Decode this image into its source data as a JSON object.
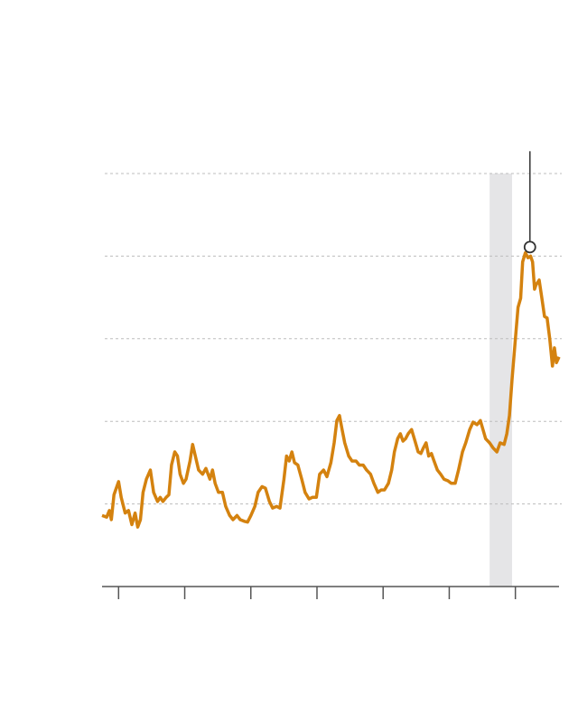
{
  "chart_data": {
    "type": "line",
    "color": "#d4820f",
    "xlim": [
      -0.25,
      6.66
    ],
    "ylim": [
      0,
      5
    ],
    "xticks": [
      0,
      1,
      2,
      3,
      4,
      5,
      6
    ],
    "yticks": [
      1,
      2,
      3,
      4,
      5
    ],
    "grid": true,
    "shade": [
      5.61,
      5.95
    ],
    "marker": {
      "x": 6.22,
      "y": 4.11,
      "leader_top": 5.27
    },
    "x": [
      -0.25,
      -0.18,
      -0.14,
      -0.11,
      -0.07,
      0,
      0.04,
      0.1,
      0.15,
      0.2,
      0.25,
      0.29,
      0.33,
      0.37,
      0.42,
      0.48,
      0.53,
      0.59,
      0.63,
      0.67,
      0.72,
      0.76,
      0.8,
      0.85,
      0.89,
      0.93,
      0.98,
      1.02,
      1.08,
      1.12,
      1.16,
      1.21,
      1.27,
      1.32,
      1.38,
      1.42,
      1.46,
      1.51,
      1.57,
      1.62,
      1.68,
      1.73,
      1.79,
      1.84,
      1.9,
      1.95,
      2.0,
      2.06,
      2.11,
      2.17,
      2.22,
      2.28,
      2.33,
      2.39,
      2.44,
      2.5,
      2.54,
      2.58,
      2.62,
      2.66,
      2.71,
      2.77,
      2.82,
      2.88,
      2.93,
      2.99,
      3.04,
      3.1,
      3.15,
      3.21,
      3.26,
      3.3,
      3.34,
      3.38,
      3.42,
      3.48,
      3.53,
      3.59,
      3.64,
      3.7,
      3.75,
      3.81,
      3.86,
      3.92,
      3.97,
      4.02,
      4.08,
      4.13,
      4.17,
      4.22,
      4.26,
      4.3,
      4.34,
      4.38,
      4.43,
      4.49,
      4.53,
      4.57,
      4.61,
      4.65,
      4.69,
      4.73,
      4.77,
      4.82,
      4.87,
      4.92,
      4.98,
      5.03,
      5.09,
      5.14,
      5.2,
      5.25,
      5.31,
      5.36,
      5.42,
      5.47,
      5.51,
      5.55,
      5.61,
      5.66,
      5.72,
      5.77,
      5.83,
      5.87,
      5.91,
      5.95,
      6.0,
      6.04,
      6.08,
      6.11,
      6.15,
      6.19,
      6.23,
      6.26,
      6.29,
      6.31,
      6.36,
      6.4,
      6.44,
      6.48,
      6.52,
      6.56,
      6.59,
      6.62,
      6.66
    ],
    "values": [
      0.86,
      0.84,
      0.92,
      0.81,
      1.11,
      1.27,
      1.08,
      0.89,
      0.92,
      0.75,
      0.89,
      0.72,
      0.81,
      1.14,
      1.3,
      1.41,
      1.14,
      1.03,
      1.08,
      1.03,
      1.08,
      1.11,
      1.47,
      1.63,
      1.58,
      1.36,
      1.25,
      1.3,
      1.52,
      1.72,
      1.58,
      1.41,
      1.36,
      1.43,
      1.3,
      1.41,
      1.25,
      1.14,
      1.14,
      0.97,
      0.86,
      0.81,
      0.86,
      0.81,
      0.79,
      0.78,
      0.86,
      0.97,
      1.14,
      1.21,
      1.19,
      1.03,
      0.95,
      0.97,
      0.95,
      1.3,
      1.58,
      1.52,
      1.63,
      1.5,
      1.47,
      1.3,
      1.14,
      1.06,
      1.08,
      1.08,
      1.36,
      1.41,
      1.33,
      1.5,
      1.74,
      2.01,
      2.07,
      1.9,
      1.74,
      1.58,
      1.52,
      1.52,
      1.47,
      1.47,
      1.41,
      1.36,
      1.25,
      1.14,
      1.17,
      1.17,
      1.25,
      1.41,
      1.63,
      1.79,
      1.85,
      1.76,
      1.79,
      1.85,
      1.9,
      1.74,
      1.63,
      1.61,
      1.68,
      1.74,
      1.58,
      1.61,
      1.52,
      1.41,
      1.36,
      1.3,
      1.28,
      1.25,
      1.25,
      1.41,
      1.63,
      1.74,
      1.9,
      1.99,
      1.96,
      2.01,
      1.9,
      1.79,
      1.74,
      1.68,
      1.63,
      1.74,
      1.72,
      1.85,
      2.07,
      2.51,
      3.0,
      3.38,
      3.49,
      3.93,
      4.04,
      3.98,
      4.0,
      3.93,
      3.6,
      3.65,
      3.71,
      3.49,
      3.27,
      3.25,
      3.0,
      2.67,
      2.89,
      2.71,
      2.78
    ]
  }
}
